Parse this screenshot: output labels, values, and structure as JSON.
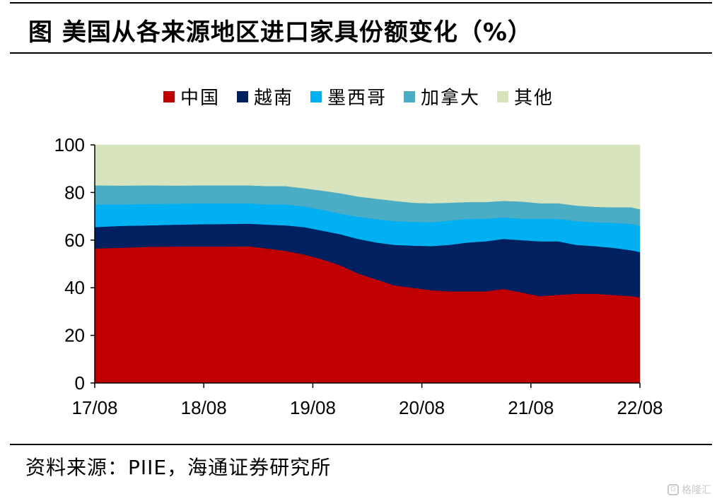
{
  "title": "图 美国从各来源地区进口家具份额变化（%）",
  "source": "资料来源：PIIE，海通证券研究所",
  "watermark": {
    "icon": "gelonghui-logo-icon",
    "text": "格隆汇"
  },
  "chart_data": {
    "type": "area",
    "stacked": true,
    "title": "美国从各来源地区进口家具份额变化（%）",
    "xlabel": "",
    "ylabel": "",
    "ylim": [
      0,
      100
    ],
    "yticks": [
      0,
      20,
      40,
      60,
      80,
      100
    ],
    "xlim": [
      0,
      60
    ],
    "xticks": [
      {
        "pos": 0,
        "label": "17/08"
      },
      {
        "pos": 12,
        "label": "18/08"
      },
      {
        "pos": 24,
        "label": "19/08"
      },
      {
        "pos": 36,
        "label": "20/08"
      },
      {
        "pos": 48,
        "label": "21/08"
      },
      {
        "pos": 60,
        "label": "22/08"
      }
    ],
    "x": [
      0,
      3,
      6,
      9,
      12,
      15,
      17,
      19,
      21,
      23,
      25,
      27,
      29,
      31,
      33,
      35,
      37,
      39,
      41,
      43,
      45,
      47,
      49,
      51,
      53,
      55,
      57,
      59,
      60
    ],
    "legend_position": "top",
    "series": [
      {
        "name": "中国",
        "color": "#C00000",
        "values": [
          56.5,
          56.8,
          57.2,
          57.3,
          57.3,
          57.3,
          57.4,
          56.5,
          55.5,
          54.0,
          52.0,
          49.5,
          46.0,
          43.5,
          41.0,
          40.0,
          39.0,
          38.5,
          38.5,
          38.5,
          39.5,
          38.0,
          36.5,
          37.0,
          37.5,
          37.5,
          37.0,
          36.5,
          36.0
        ]
      },
      {
        "name": "越南",
        "color": "#002060",
        "values": [
          9.0,
          9.2,
          9.0,
          9.2,
          9.4,
          9.5,
          9.5,
          10.0,
          10.7,
          11.5,
          12.0,
          13.0,
          14.5,
          15.5,
          17.0,
          17.7,
          18.5,
          19.5,
          20.5,
          21.0,
          21.0,
          22.0,
          23.0,
          22.5,
          20.5,
          20.0,
          19.8,
          19.3,
          19.0
        ]
      },
      {
        "name": "墨西哥",
        "color": "#00B0F0",
        "values": [
          9.5,
          9.0,
          9.0,
          8.8,
          8.8,
          8.7,
          8.6,
          8.5,
          8.8,
          8.7,
          8.8,
          8.7,
          9.3,
          9.8,
          10.0,
          10.0,
          10.0,
          10.2,
          10.0,
          9.5,
          9.0,
          9.0,
          9.5,
          9.5,
          10.0,
          10.0,
          10.5,
          11.0,
          11.0
        ]
      },
      {
        "name": "加拿大",
        "color": "#4BACC6",
        "values": [
          8.0,
          7.9,
          7.8,
          7.6,
          7.5,
          7.5,
          7.5,
          7.7,
          7.7,
          7.6,
          8.0,
          8.5,
          8.5,
          8.6,
          8.5,
          8.0,
          8.0,
          7.5,
          7.0,
          7.0,
          7.0,
          7.2,
          6.5,
          6.5,
          6.5,
          6.5,
          6.5,
          7.0,
          7.0
        ]
      },
      {
        "name": "其他",
        "color": "#D7E4BD",
        "values": [
          17.0,
          17.1,
          17.0,
          17.1,
          17.0,
          17.0,
          17.0,
          17.3,
          17.3,
          18.2,
          19.2,
          20.3,
          21.7,
          22.6,
          23.5,
          24.3,
          24.5,
          24.3,
          24.0,
          24.0,
          23.5,
          23.8,
          24.5,
          24.5,
          25.5,
          26.0,
          26.2,
          26.2,
          27.0
        ]
      }
    ]
  }
}
